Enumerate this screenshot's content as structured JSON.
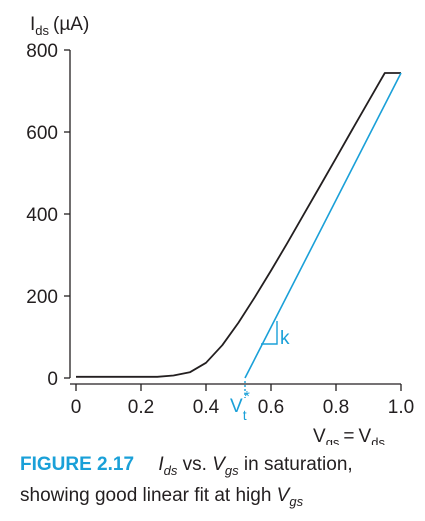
{
  "chart_data": {
    "type": "line",
    "ylabel_main": "I",
    "ylabel_sub": "ds",
    "ylabel_unit": "(µA)",
    "xlabel_left_main": "V",
    "xlabel_left_sub": "gs",
    "xlabel_equals": "=",
    "xlabel_right_main": "V",
    "xlabel_right_sub": "ds",
    "xlim": [
      0,
      1.0
    ],
    "ylim": [
      0,
      800
    ],
    "x_ticks": [
      0,
      0.2,
      0.4,
      0.6,
      0.8,
      1.0
    ],
    "x_tick_labels": [
      "0",
      "0.2",
      "0.4",
      "0.6",
      "0.8",
      "1.0"
    ],
    "y_ticks": [
      0,
      200,
      400,
      600,
      800
    ],
    "y_tick_labels": [
      "0",
      "200",
      "400",
      "600",
      "800"
    ],
    "grid": false,
    "series": [
      {
        "color": "#231f20",
        "x": [
          -0.02,
          0.0,
          0.1,
          0.2,
          0.25,
          0.3,
          0.35,
          0.4,
          0.45,
          0.5,
          0.55,
          0.6,
          0.65,
          0.7,
          0.75,
          0.8,
          0.85,
          0.9,
          0.95,
          1.0
        ],
        "y": [
          3,
          3,
          3,
          3,
          3,
          6,
          14,
          37,
          80,
          135,
          197,
          262,
          329,
          398,
          467,
          536,
          606,
          675,
          744,
          744
        ]
      },
      {
        "color": "#1aa0d8",
        "x": [
          0.52,
          1.0
        ],
        "y": [
          0,
          744
        ]
      }
    ],
    "annotations": {
      "vt_main": "V",
      "vt_sub": "t",
      "vt_sup": "*",
      "vt_x": 0.52,
      "slope_label": "k",
      "accent_color": "#1aa0d8"
    }
  },
  "caption": {
    "figure_label": "FIGURE 2.17",
    "line1_text": " vs.  in saturation,",
    "ids_main": "I",
    "ids_sub": "ds",
    "vgs_main": "V",
    "vgs_sub": "gs",
    "line2_text": "showing good linear fit at high ",
    "vgs2_main": "V",
    "vgs2_sub": "gs"
  }
}
